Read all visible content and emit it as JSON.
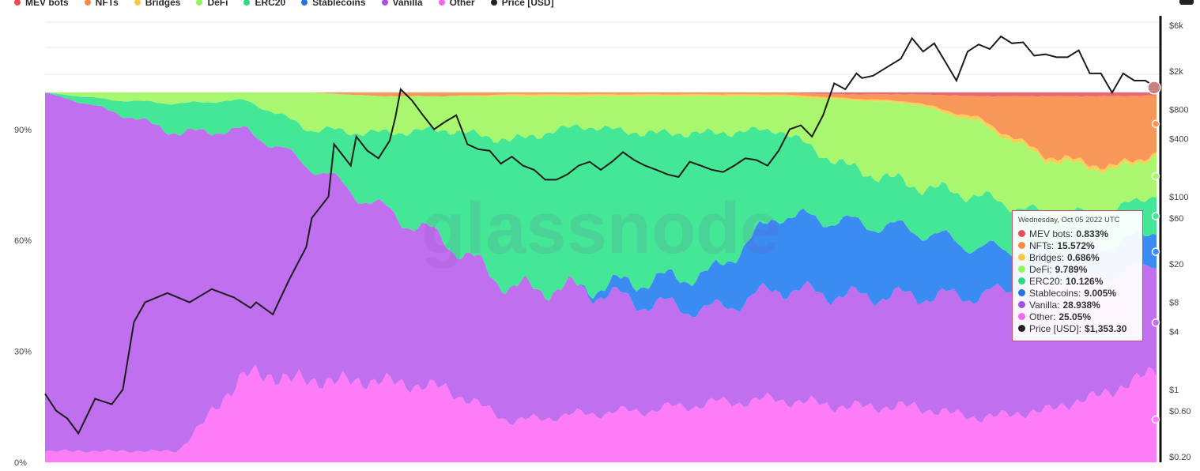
{
  "legend": [
    {
      "label": "MEV bots",
      "color": "#ea4b57"
    },
    {
      "label": "NFTs",
      "color": "#f68a43"
    },
    {
      "label": "Bridges",
      "color": "#f7c943"
    },
    {
      "label": "DeFi",
      "color": "#8ff55a"
    },
    {
      "label": "ERC20",
      "color": "#2ed784"
    },
    {
      "label": "Stablecoins",
      "color": "#2372e6"
    },
    {
      "label": "Vanilla",
      "color": "#a651e2"
    },
    {
      "label": "Other",
      "color": "#f466f4"
    },
    {
      "label": "Price [USD]",
      "color": "#222222"
    }
  ],
  "watermark": "glassnode",
  "tooltip": {
    "date": "Wednesday, Oct 05 2022 UTC",
    "rows": [
      {
        "label": "MEV bots:",
        "value": "0.833%",
        "color": "#ea4b57"
      },
      {
        "label": "NFTs:",
        "value": "15.572%",
        "color": "#f68a43"
      },
      {
        "label": "Bridges:",
        "value": "0.686%",
        "color": "#f7c943"
      },
      {
        "label": "DeFi:",
        "value": "9.789%",
        "color": "#8ff55a"
      },
      {
        "label": "ERC20:",
        "value": "10.126%",
        "color": "#2ed784"
      },
      {
        "label": "Stablecoins:",
        "value": "9.005%",
        "color": "#2372e6"
      },
      {
        "label": "Vanilla:",
        "value": "28.938%",
        "color": "#a651e2"
      },
      {
        "label": "Other:",
        "value": "25.05%",
        "color": "#f466f4"
      },
      {
        "label": "Price [USD]:",
        "value": "$1,353.30",
        "color": "#222222"
      }
    ]
  },
  "chart_data": {
    "type": "area",
    "stacked": true,
    "normalized": true,
    "x": [
      0,
      0.06,
      0.12,
      0.18,
      0.24,
      0.3,
      0.36,
      0.42,
      0.48,
      0.54,
      0.6,
      0.66,
      0.72,
      0.78,
      0.84,
      0.9,
      0.96,
      1.0
    ],
    "series": [
      {
        "name": "Other",
        "color": "#ff7cf8",
        "values": [
          3,
          3,
          3,
          24,
          22,
          22,
          20,
          11,
          13,
          14,
          16,
          17,
          15,
          15,
          12,
          14,
          19,
          25
        ]
      },
      {
        "name": "Vanilla",
        "color": "#c06fee",
        "values": [
          97,
          92,
          86,
          66,
          58,
          47,
          40,
          36,
          34,
          29,
          25,
          30,
          30,
          30,
          33,
          35,
          31,
          29
        ]
      },
      {
        "name": "Stablecoins",
        "color": "#3a8cf2",
        "values": [
          0,
          0,
          0,
          0,
          0,
          0,
          0,
          0,
          0,
          6,
          10,
          20,
          20,
          18,
          13,
          8,
          8,
          9
        ]
      },
      {
        "name": "ERC20",
        "color": "#43e795",
        "values": [
          0,
          3,
          8,
          8,
          10,
          20,
          30,
          40,
          44,
          40,
          38,
          23,
          15,
          12,
          14,
          10,
          9,
          10
        ]
      },
      {
        "name": "DeFi",
        "color": "#a9f76e",
        "values": [
          0,
          2,
          3,
          2,
          10,
          10,
          9,
          12,
          8,
          10,
          10,
          9,
          18,
          22,
          20,
          15,
          11,
          10
        ]
      },
      {
        "name": "Bridges",
        "color": "#f8d058",
        "values": [
          0,
          0,
          0,
          0,
          0,
          0,
          0,
          0.5,
          0.5,
          0.5,
          0.5,
          0.5,
          0.5,
          0.5,
          1,
          1,
          1,
          0.7
        ]
      },
      {
        "name": "NFTs",
        "color": "#f8975a",
        "values": [
          0,
          0,
          0,
          0,
          0,
          1,
          1,
          0.5,
          0.5,
          0.5,
          0.5,
          0.5,
          1,
          2,
          6,
          16,
          19,
          15.6
        ]
      },
      {
        "name": "MEV bots",
        "color": "#ee6473",
        "values": [
          0,
          0,
          0,
          0,
          0,
          0,
          0,
          0,
          0,
          0,
          0,
          0,
          0.5,
          0.5,
          1,
          1,
          1,
          0.8
        ]
      }
    ],
    "price": {
      "name": "Price [USD]",
      "scale": "log",
      "x": [
        0,
        0.01,
        0.02,
        0.03,
        0.045,
        0.06,
        0.07,
        0.08,
        0.09,
        0.11,
        0.13,
        0.15,
        0.17,
        0.185,
        0.19,
        0.205,
        0.21,
        0.22,
        0.235,
        0.24,
        0.255,
        0.26,
        0.275,
        0.28,
        0.29,
        0.3,
        0.31,
        0.315,
        0.32,
        0.33,
        0.34,
        0.35,
        0.36,
        0.37,
        0.38,
        0.39,
        0.4,
        0.41,
        0.42,
        0.43,
        0.44,
        0.45,
        0.46,
        0.47,
        0.48,
        0.49,
        0.5,
        0.51,
        0.52,
        0.53,
        0.54,
        0.55,
        0.56,
        0.57,
        0.58,
        0.59,
        0.6,
        0.61,
        0.62,
        0.63,
        0.64,
        0.65,
        0.66,
        0.67,
        0.68,
        0.69,
        0.7,
        0.71,
        0.72,
        0.73,
        0.735,
        0.745,
        0.76,
        0.77,
        0.78,
        0.79,
        0.8,
        0.81,
        0.82,
        0.83,
        0.84,
        0.85,
        0.86,
        0.87,
        0.88,
        0.89,
        0.9,
        0.91,
        0.92,
        0.93,
        0.94,
        0.95,
        0.96,
        0.97,
        0.98,
        0.99,
        1.0
      ],
      "values": [
        0.9,
        0.6,
        0.5,
        0.35,
        0.8,
        0.7,
        1.0,
        5,
        8,
        10,
        8,
        11,
        9,
        7,
        8,
        6,
        8,
        14,
        30,
        60,
        100,
        350,
        210,
        420,
        300,
        250,
        380,
        650,
        1300,
        1000,
        700,
        500,
        600,
        700,
        350,
        310,
        300,
        220,
        260,
        210,
        190,
        150,
        150,
        170,
        210,
        230,
        190,
        230,
        290,
        240,
        210,
        190,
        170,
        160,
        230,
        210,
        190,
        180,
        210,
        250,
        240,
        210,
        300,
        500,
        550,
        420,
        700,
        1500,
        1300,
        1900,
        1700,
        1800,
        2300,
        2700,
        4400,
        3200,
        3900,
        2500,
        1600,
        3200,
        3800,
        3400,
        4600,
        3900,
        4000,
        2900,
        3000,
        2800,
        2800,
        3300,
        1900,
        1900,
        1200,
        1900,
        1600,
        1600,
        1353.3
      ]
    },
    "y_left": {
      "ticks": [
        "0%",
        "30%",
        "60%",
        "90%"
      ],
      "range": [
        0,
        100
      ]
    },
    "y_right": {
      "ticks": [
        "$0.20",
        "$0.60",
        "$1",
        "$4",
        "$8",
        "$20",
        "$60",
        "$100",
        "$400",
        "$800",
        "$2k",
        "$6k"
      ],
      "range": [
        0.2,
        6000
      ]
    },
    "grid": true
  }
}
